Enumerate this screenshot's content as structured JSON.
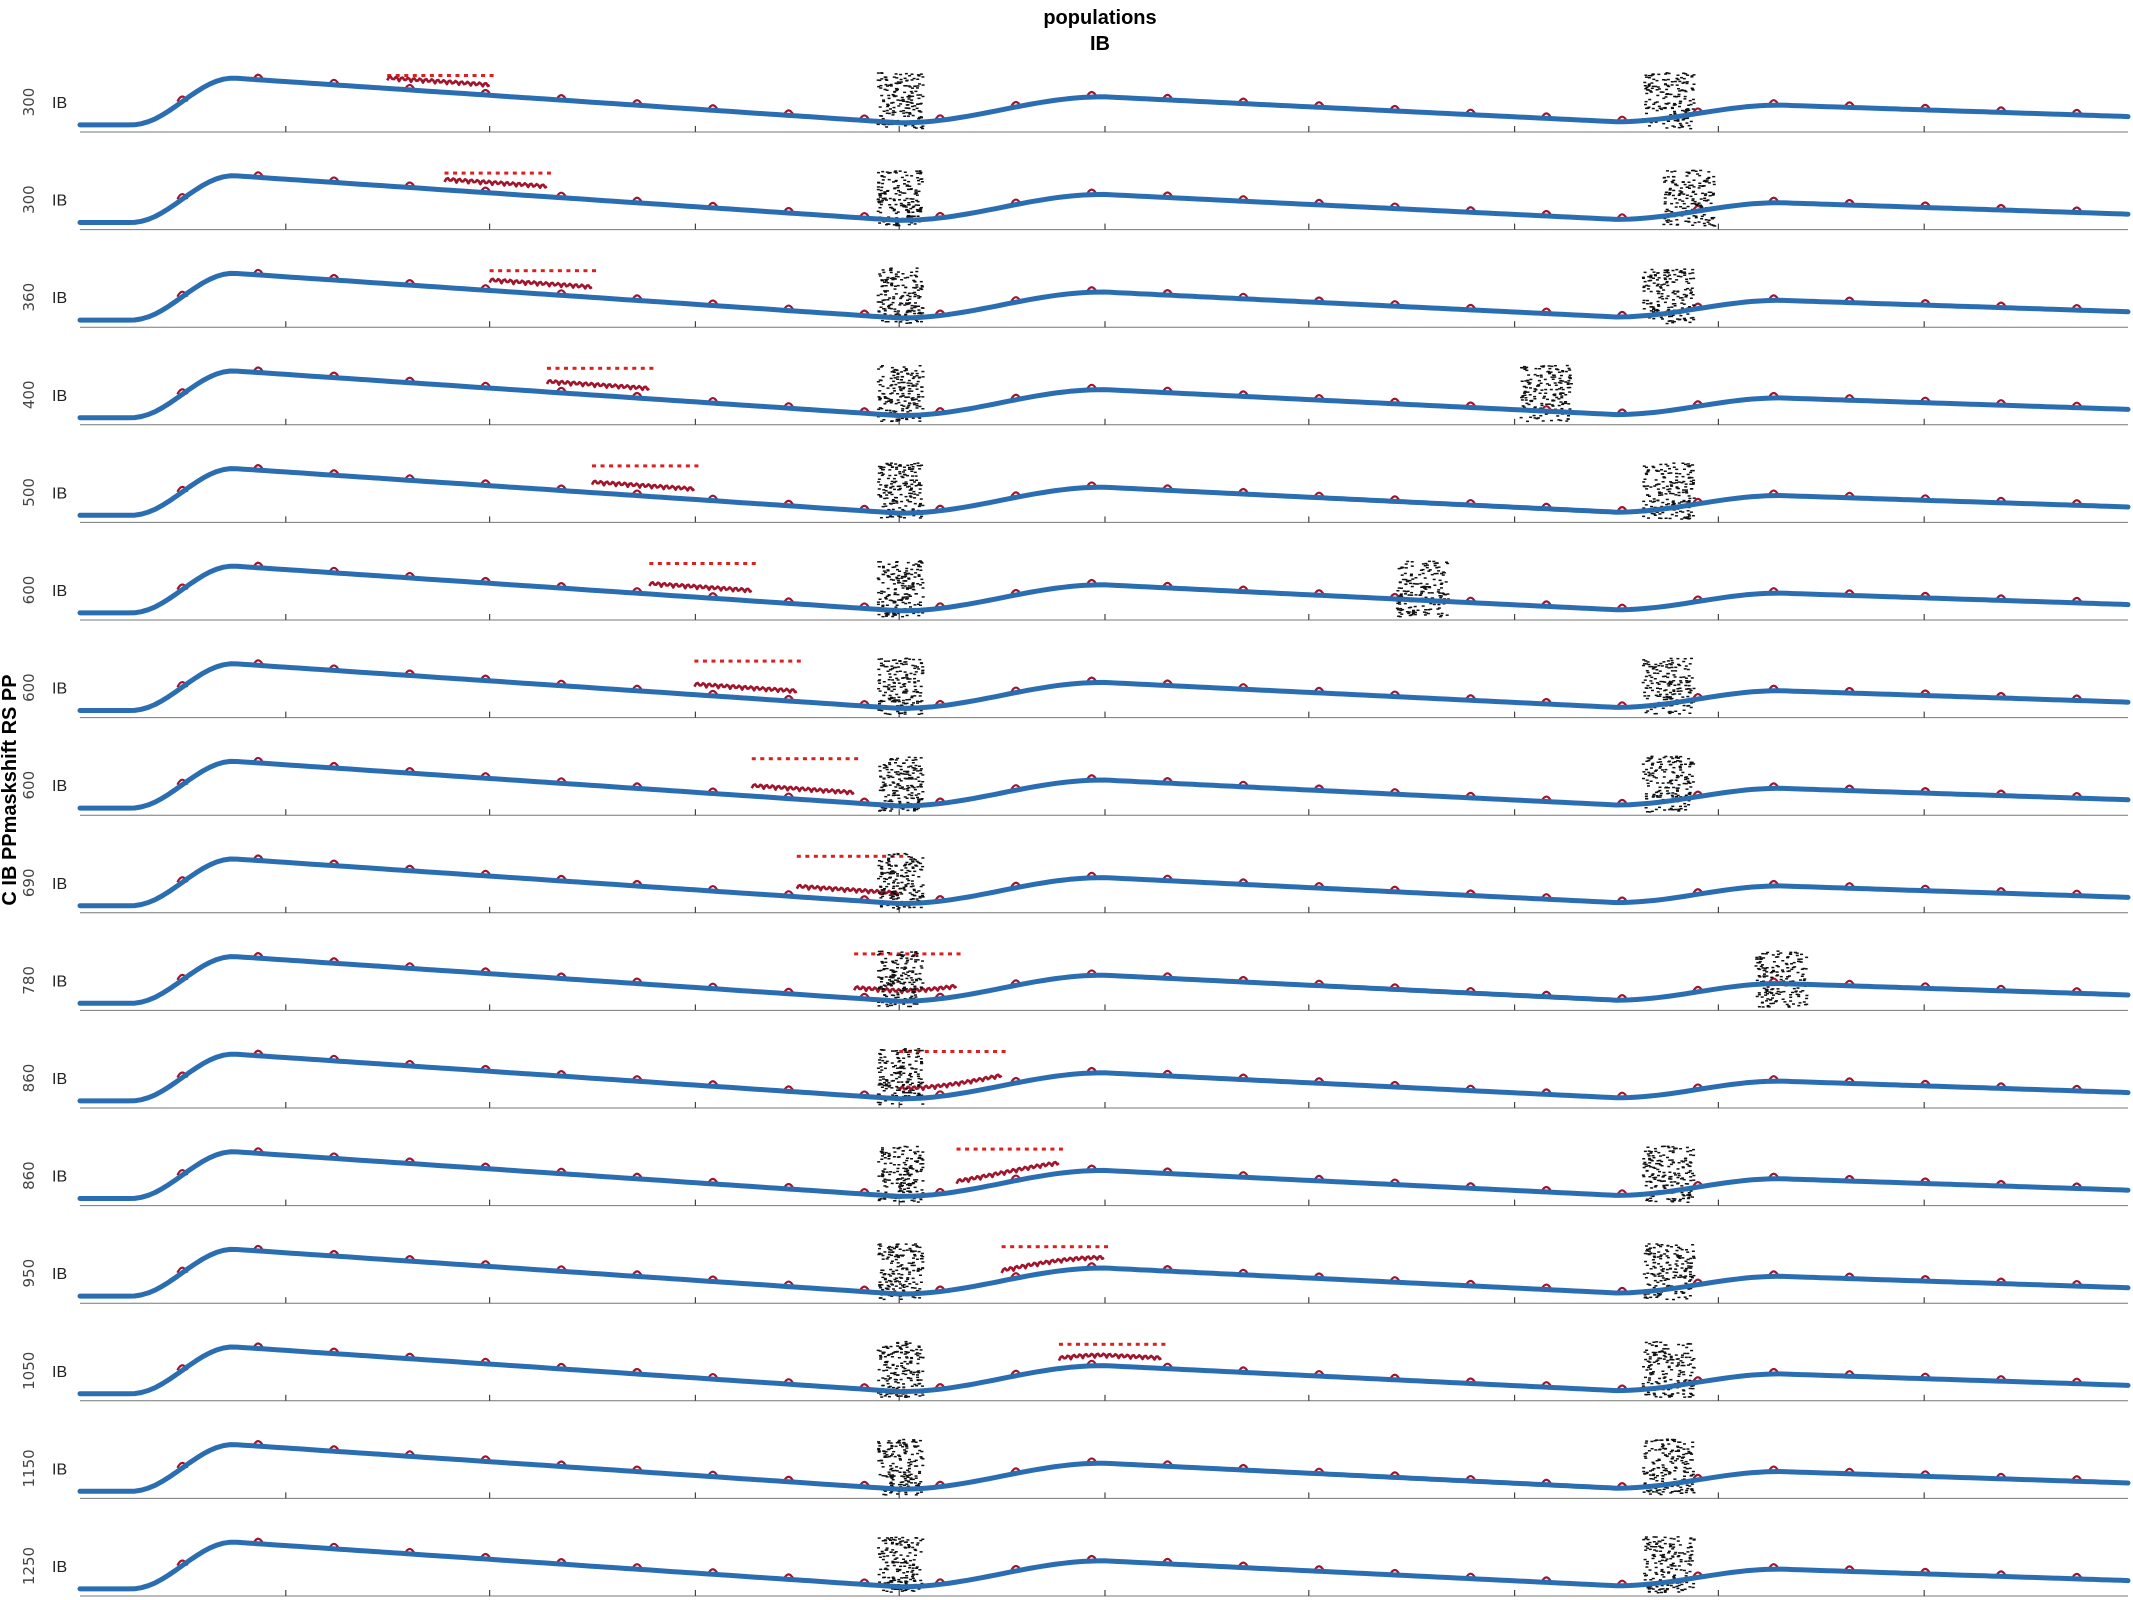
{
  "figure": {
    "title_line1": "populations",
    "title_line2": "IB",
    "ylabel": "C IB PPmaskshift RS PP"
  },
  "colors": {
    "trace_blue": "#2a6db1",
    "trace_red": "#a0142c",
    "stim_red": "#e01e1e",
    "spikes": "#111111"
  },
  "chart_data": {
    "type": "line",
    "subplot_count": 16,
    "population_label": "IB",
    "series": [
      {
        "name": "",
        "color": "#2a6db1"
      },
      {
        "name": "",
        "color": "#a0142c"
      }
    ],
    "panels": [
      {
        "label": "IB",
        "ytick": "300",
        "stim_start": 0.15,
        "bump_period": 0.0,
        "burst2": 0.775
      },
      {
        "label": "IB",
        "ytick": "300",
        "stim_start": 0.178,
        "bump_period": 0.0,
        "burst2": 0.785
      },
      {
        "label": "IB",
        "ytick": "360",
        "stim_start": 0.2,
        "bump_period": 0.0,
        "burst2": 0.775
      },
      {
        "label": "IB",
        "ytick": "400",
        "stim_start": 0.228,
        "bump_period": 0.0,
        "burst2": 0.715
      },
      {
        "label": "IB",
        "ytick": "500",
        "stim_start": 0.25,
        "bump_period": 0.0,
        "burst2": 0.775
      },
      {
        "label": "IB",
        "ytick": "600",
        "stim_start": 0.278,
        "bump_period": 0.0,
        "burst2": 0.655
      },
      {
        "label": "IB",
        "ytick": "600",
        "stim_start": 0.3,
        "bump_period": 0.0,
        "burst2": 0.775
      },
      {
        "label": "IB",
        "ytick": "600",
        "stim_start": 0.328,
        "bump_period": 0.0,
        "burst2": 0.775
      },
      {
        "label": "IB",
        "ytick": "690",
        "stim_start": 0.35,
        "bump_period": 0.0,
        "burst2": 0.0
      },
      {
        "label": "IB",
        "ytick": "780",
        "stim_start": 0.378,
        "bump_period": 0.0,
        "burst2": 0.83
      },
      {
        "label": "IB",
        "ytick": "860",
        "stim_start": 0.4,
        "bump_period": 0.0,
        "burst2": 0.0
      },
      {
        "label": "IB",
        "ytick": "860",
        "stim_start": 0.428,
        "bump_period": 0.0,
        "burst2": 0.775
      },
      {
        "label": "IB",
        "ytick": "950",
        "stim_start": 0.45,
        "bump_period": 0.0,
        "burst2": 0.775
      },
      {
        "label": "IB",
        "ytick": "1050",
        "stim_start": 0.478,
        "bump_period": 0.0,
        "burst2": 0.775
      },
      {
        "label": "IB",
        "ytick": "1150",
        "stim_start": -1,
        "bump_period": 0.0,
        "burst2": 0.775
      },
      {
        "label": "IB",
        "ytick": "1250",
        "stim_start": -1,
        "bump_period": 0.0,
        "burst2": 0.775
      }
    ]
  }
}
